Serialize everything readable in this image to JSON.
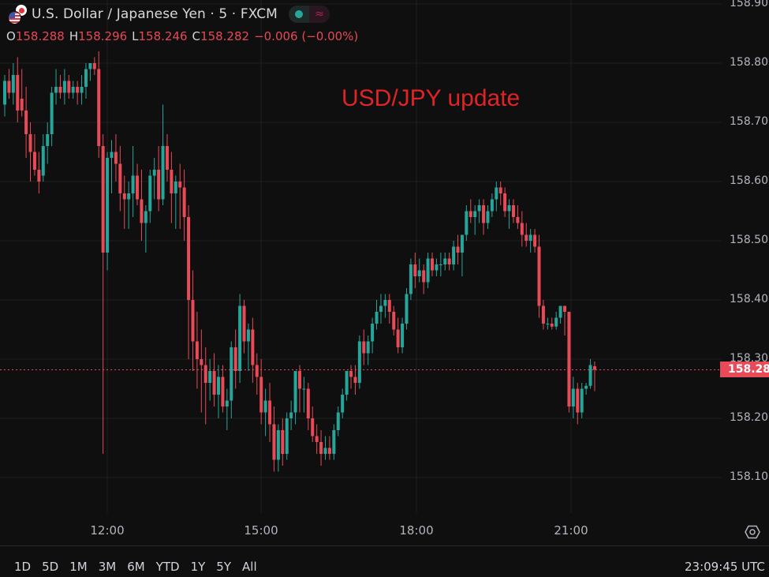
{
  "header": {
    "title": "U.S. Dollar / Japanese Yen · 5 · FXCM",
    "icons": {
      "flag": "usd-jpy-flag-icon",
      "live": "market-open-dot-icon",
      "wave": "wave-icon"
    },
    "ohlc": {
      "o_label": "O",
      "o": "158.288",
      "h_label": "H",
      "h": "158.296",
      "l_label": "L",
      "l": "158.246",
      "c_label": "C",
      "c": "158.282",
      "change": "−0.006 (−0.00%)"
    }
  },
  "annotation": "USD/JPY update",
  "price_tag": "158.282",
  "yaxis": {
    "labels": [
      "158.900",
      "158.800",
      "158.700",
      "158.600",
      "158.500",
      "158.400",
      "158.300",
      "158.200",
      "158.100"
    ]
  },
  "xaxis": {
    "labels": [
      "12:00",
      "15:00",
      "18:00",
      "21:00"
    ]
  },
  "ranges": [
    "1D",
    "5D",
    "1M",
    "3M",
    "6M",
    "YTD",
    "1Y",
    "5Y",
    "All"
  ],
  "clock": "23:09:45 UTC",
  "colors": {
    "up": "#26a69a",
    "down": "#e84a57",
    "background": "#0f0f0f",
    "grid": "#1f1f1f",
    "annotation": "#e02424"
  },
  "chart_data": {
    "type": "candlestick",
    "title": "U.S. Dollar / Japanese Yen · 5 · FXCM",
    "interval": "5m",
    "ylim": [
      158.09,
      158.91
    ],
    "y_ticks": [
      158.9,
      158.8,
      158.7,
      158.6,
      158.5,
      158.4,
      158.3,
      158.2,
      158.1
    ],
    "x_ticks": [
      "12:00",
      "15:00",
      "18:00",
      "21:00"
    ],
    "last_price": 158.282,
    "annotation": "USD/JPY update",
    "candles": [
      [
        158.73,
        158.78,
        158.71,
        158.77
      ],
      [
        158.77,
        158.79,
        158.74,
        158.75
      ],
      [
        158.75,
        158.8,
        158.73,
        158.78
      ],
      [
        158.78,
        158.81,
        158.7,
        158.72
      ],
      [
        158.74,
        158.79,
        158.71,
        158.72
      ],
      [
        158.72,
        158.76,
        158.64,
        158.68
      ],
      [
        158.68,
        158.7,
        158.6,
        158.65
      ],
      [
        158.65,
        158.68,
        158.61,
        158.62
      ],
      [
        158.62,
        158.65,
        158.58,
        158.6
      ],
      [
        158.61,
        158.68,
        158.6,
        158.66
      ],
      [
        158.66,
        158.7,
        158.63,
        158.68
      ],
      [
        158.68,
        158.76,
        158.66,
        158.75
      ],
      [
        158.75,
        158.79,
        158.73,
        158.76
      ],
      [
        158.76,
        158.78,
        158.74,
        158.75
      ],
      [
        158.75,
        158.79,
        158.73,
        158.77
      ],
      [
        158.77,
        158.78,
        158.74,
        158.75
      ],
      [
        158.75,
        158.77,
        158.74,
        158.76
      ],
      [
        158.76,
        158.77,
        158.73,
        158.75
      ],
      [
        158.75,
        158.78,
        158.73,
        158.76
      ],
      [
        158.76,
        158.8,
        158.74,
        158.79
      ],
      [
        158.79,
        158.8,
        158.77,
        158.8
      ],
      [
        158.8,
        158.81,
        158.78,
        158.79
      ],
      [
        158.79,
        158.82,
        158.64,
        158.66
      ],
      [
        158.66,
        158.68,
        158.14,
        158.48
      ],
      [
        158.48,
        158.65,
        158.45,
        158.64
      ],
      [
        158.64,
        158.67,
        158.58,
        158.65
      ],
      [
        158.65,
        158.68,
        158.6,
        158.63
      ],
      [
        158.63,
        158.66,
        158.55,
        158.58
      ],
      [
        158.58,
        158.61,
        158.52,
        158.57
      ],
      [
        158.57,
        158.6,
        158.52,
        158.58
      ],
      [
        158.58,
        158.66,
        158.54,
        158.61
      ],
      [
        158.61,
        158.63,
        158.56,
        158.57
      ],
      [
        158.57,
        158.62,
        158.5,
        158.53
      ],
      [
        158.53,
        158.56,
        158.48,
        158.55
      ],
      [
        158.55,
        158.62,
        158.53,
        158.61
      ],
      [
        158.61,
        158.64,
        158.57,
        158.62
      ],
      [
        158.62,
        158.66,
        158.55,
        158.57
      ],
      [
        158.57,
        158.73,
        158.56,
        158.66
      ],
      [
        158.66,
        158.68,
        158.6,
        158.62
      ],
      [
        158.62,
        158.65,
        158.53,
        158.58
      ],
      [
        158.58,
        158.61,
        158.52,
        158.6
      ],
      [
        158.6,
        158.63,
        158.52,
        158.59
      ],
      [
        158.59,
        158.62,
        158.5,
        158.54
      ],
      [
        158.54,
        158.56,
        158.3,
        158.4
      ],
      [
        158.4,
        158.45,
        158.28,
        158.33
      ],
      [
        158.33,
        158.38,
        158.25,
        158.3
      ],
      [
        158.3,
        158.35,
        158.21,
        158.29
      ],
      [
        158.29,
        158.32,
        158.19,
        158.26
      ],
      [
        158.26,
        158.3,
        158.23,
        158.28
      ],
      [
        158.28,
        158.31,
        158.22,
        158.24
      ],
      [
        158.24,
        158.29,
        158.2,
        158.27
      ],
      [
        158.27,
        158.29,
        158.21,
        158.22
      ],
      [
        158.22,
        158.25,
        158.18,
        158.23
      ],
      [
        158.23,
        158.33,
        158.2,
        158.32
      ],
      [
        158.32,
        158.35,
        158.25,
        158.28
      ],
      [
        158.28,
        158.41,
        158.26,
        158.39
      ],
      [
        158.39,
        158.4,
        158.31,
        158.33
      ],
      [
        158.33,
        158.36,
        158.28,
        158.35
      ],
      [
        158.35,
        158.37,
        158.26,
        158.29
      ],
      [
        158.29,
        158.31,
        158.24,
        158.27
      ],
      [
        158.27,
        158.3,
        158.19,
        158.21
      ],
      [
        158.21,
        158.25,
        158.17,
        158.23
      ],
      [
        158.23,
        158.26,
        158.16,
        158.19
      ],
      [
        158.19,
        158.22,
        158.11,
        158.13
      ],
      [
        158.13,
        158.19,
        158.11,
        158.18
      ],
      [
        158.18,
        158.2,
        158.12,
        158.14
      ],
      [
        158.14,
        158.21,
        158.13,
        158.2
      ],
      [
        158.2,
        158.23,
        158.18,
        158.21
      ],
      [
        158.21,
        158.28,
        158.19,
        158.28
      ],
      [
        158.28,
        158.29,
        158.21,
        158.25
      ],
      [
        158.25,
        158.27,
        158.21,
        158.25
      ],
      [
        158.25,
        158.26,
        158.18,
        158.2
      ],
      [
        158.2,
        158.22,
        158.16,
        158.17
      ],
      [
        158.17,
        158.19,
        158.14,
        158.16
      ],
      [
        158.16,
        158.18,
        158.12,
        158.14
      ],
      [
        158.14,
        158.17,
        158.13,
        158.15
      ],
      [
        158.15,
        158.17,
        158.13,
        158.14
      ],
      [
        158.14,
        158.19,
        158.13,
        158.18
      ],
      [
        158.18,
        158.22,
        158.17,
        158.21
      ],
      [
        158.21,
        158.25,
        158.2,
        158.24
      ],
      [
        158.24,
        158.28,
        158.23,
        158.28
      ],
      [
        158.28,
        158.29,
        158.25,
        158.27
      ],
      [
        158.27,
        158.29,
        158.24,
        158.26
      ],
      [
        158.26,
        158.34,
        158.25,
        158.33
      ],
      [
        158.33,
        158.35,
        158.29,
        158.31
      ],
      [
        158.31,
        158.34,
        158.29,
        158.33
      ],
      [
        158.33,
        158.37,
        158.31,
        158.36
      ],
      [
        158.36,
        158.4,
        158.35,
        158.38
      ],
      [
        158.38,
        158.41,
        158.36,
        158.39
      ],
      [
        158.39,
        158.41,
        158.37,
        158.4
      ],
      [
        158.4,
        158.41,
        158.36,
        158.38
      ],
      [
        158.38,
        158.39,
        158.34,
        158.35
      ],
      [
        158.35,
        158.37,
        158.31,
        158.32
      ],
      [
        158.32,
        158.37,
        158.31,
        158.36
      ],
      [
        158.36,
        158.42,
        158.35,
        158.41
      ],
      [
        158.41,
        158.47,
        158.4,
        158.46
      ],
      [
        158.46,
        158.48,
        158.42,
        158.44
      ],
      [
        158.44,
        158.47,
        158.43,
        158.45
      ],
      [
        158.45,
        158.46,
        158.41,
        158.43
      ],
      [
        158.43,
        158.48,
        158.42,
        158.47
      ],
      [
        158.47,
        158.48,
        158.44,
        158.45
      ],
      [
        158.45,
        158.47,
        158.44,
        158.46
      ],
      [
        158.46,
        158.48,
        158.44,
        158.46
      ],
      [
        158.46,
        158.48,
        158.45,
        158.47
      ],
      [
        158.47,
        158.48,
        158.45,
        158.46
      ],
      [
        158.46,
        158.5,
        158.45,
        158.49
      ],
      [
        158.49,
        158.51,
        158.46,
        158.48
      ],
      [
        158.48,
        158.51,
        158.44,
        158.51
      ],
      [
        158.51,
        158.56,
        158.5,
        158.55
      ],
      [
        158.55,
        158.57,
        158.53,
        158.54
      ],
      [
        158.54,
        158.56,
        158.51,
        158.55
      ],
      [
        158.55,
        158.57,
        158.53,
        158.56
      ],
      [
        158.56,
        158.57,
        158.51,
        158.53
      ],
      [
        158.53,
        158.56,
        158.52,
        158.55
      ],
      [
        158.55,
        158.58,
        158.54,
        158.57
      ],
      [
        158.57,
        158.6,
        158.55,
        158.59
      ],
      [
        158.59,
        158.6,
        158.56,
        158.58
      ],
      [
        158.58,
        158.59,
        158.54,
        158.55
      ],
      [
        158.55,
        158.57,
        158.52,
        158.56
      ],
      [
        158.56,
        158.57,
        158.53,
        158.54
      ],
      [
        158.54,
        158.56,
        158.52,
        158.53
      ],
      [
        158.53,
        158.55,
        158.49,
        158.51
      ],
      [
        158.51,
        158.53,
        158.49,
        158.5
      ],
      [
        158.5,
        158.52,
        158.48,
        158.51
      ],
      [
        158.51,
        158.52,
        158.48,
        158.49
      ],
      [
        158.49,
        158.51,
        158.37,
        158.39
      ],
      [
        158.39,
        158.4,
        158.35,
        158.36
      ],
      [
        158.36,
        158.37,
        158.35,
        158.36
      ],
      [
        158.36,
        158.37,
        158.35,
        158.355
      ],
      [
        158.355,
        158.38,
        158.35,
        158.37
      ],
      [
        158.37,
        158.39,
        158.36,
        158.39
      ],
      [
        158.39,
        158.39,
        158.34,
        158.38
      ],
      [
        158.38,
        158.38,
        158.21,
        158.22
      ],
      [
        158.22,
        158.27,
        158.2,
        158.25
      ],
      [
        158.25,
        158.26,
        158.19,
        158.21
      ],
      [
        158.21,
        158.26,
        158.2,
        158.25
      ],
      [
        158.25,
        158.26,
        158.24,
        158.255
      ],
      [
        158.255,
        158.3,
        158.25,
        158.29
      ],
      [
        158.288,
        158.296,
        158.246,
        158.282
      ]
    ]
  }
}
